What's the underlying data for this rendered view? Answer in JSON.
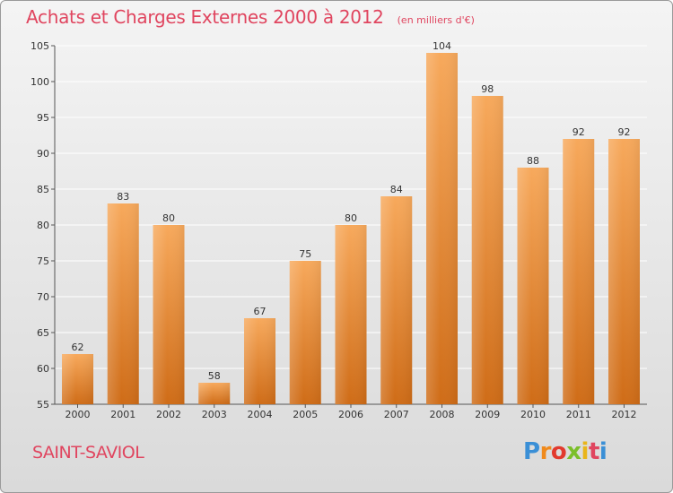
{
  "title": "Achats et Charges Externes 2000 à 2012",
  "unit": "(en milliers d'€)",
  "commune": "SAINT-SAVIOL",
  "logo": {
    "text": "Proxiti",
    "colors": [
      "#3a8fd6",
      "#f08a1c",
      "#e23a2e",
      "#7bbf2a",
      "#e9b51a",
      "#e0455f"
    ]
  },
  "colors": {
    "bar_top": "#f7a95c",
    "bar_bottom": "#cf6c17",
    "grid": "#ffffff",
    "title": "#e0455f"
  },
  "chart_data": {
    "type": "bar",
    "title": "Achats et Charges Externes 2000 à 2012",
    "subtitle": "(en milliers d'€)",
    "categories": [
      "2000",
      "2001",
      "2002",
      "2003",
      "2004",
      "2005",
      "2006",
      "2007",
      "2008",
      "2009",
      "2010",
      "2011",
      "2012"
    ],
    "values": [
      62,
      83,
      80,
      58,
      67,
      75,
      80,
      84,
      104,
      98,
      88,
      92,
      92
    ],
    "ylim": [
      55,
      105
    ],
    "yticks": [
      55,
      60,
      65,
      70,
      75,
      80,
      85,
      90,
      95,
      100,
      105
    ],
    "grid": true,
    "data_labels": true
  }
}
